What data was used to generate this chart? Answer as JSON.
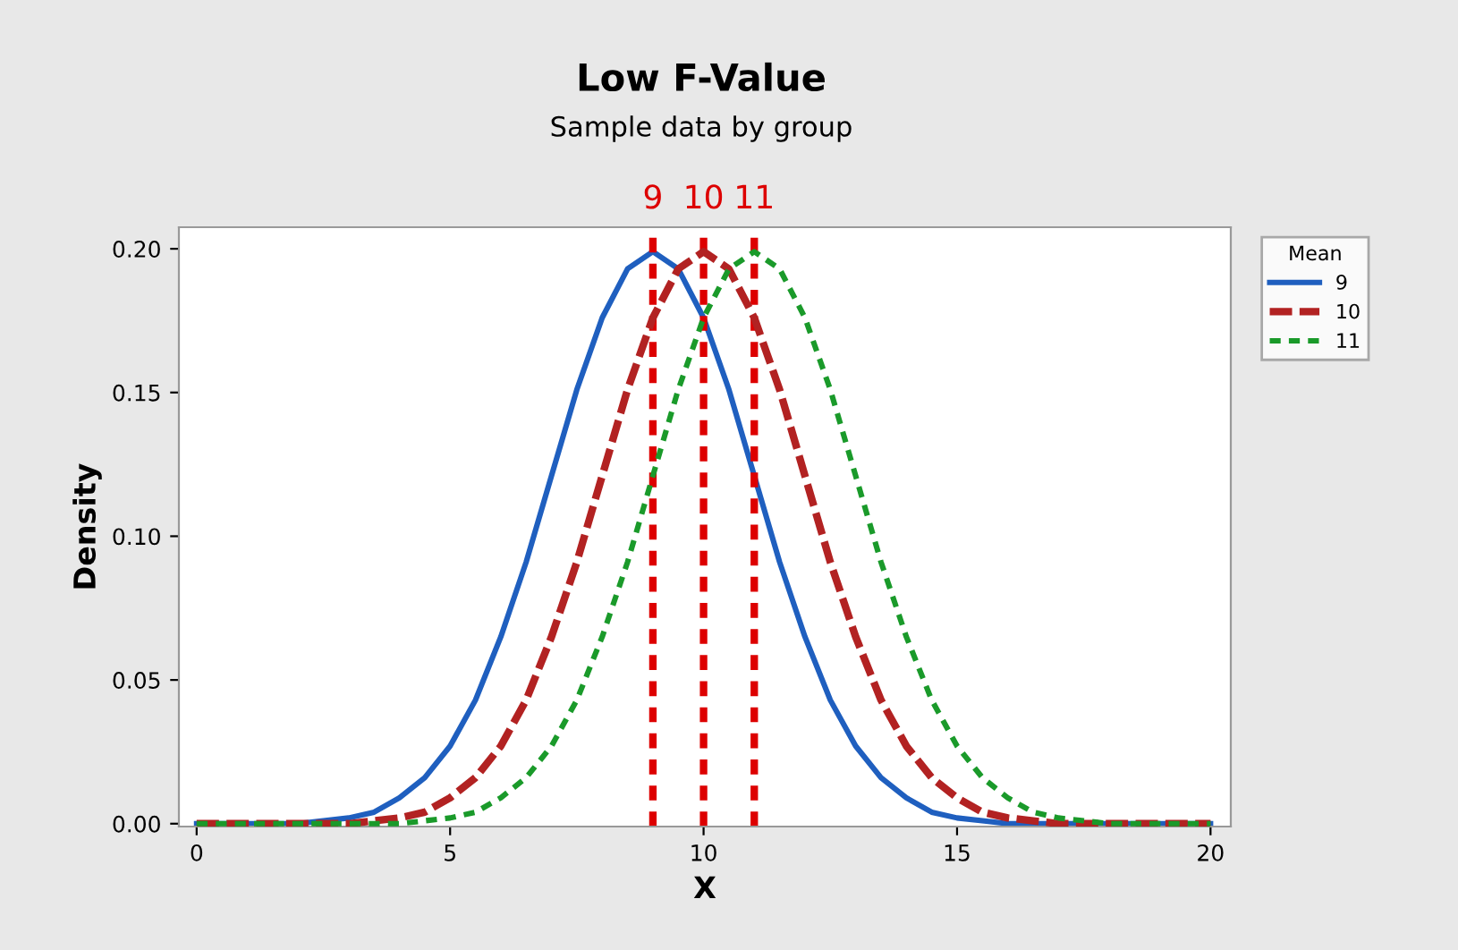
{
  "chart_data": {
    "type": "line",
    "title": "Low F-Value",
    "subtitle": "Sample data by group",
    "xlabel": "X",
    "ylabel": "Density",
    "legend_title": "Mean",
    "legend": "right",
    "x": [
      0,
      0.5,
      1,
      1.5,
      2,
      2.5,
      3,
      3.5,
      4,
      4.5,
      5,
      5.5,
      6,
      6.5,
      7,
      7.5,
      8,
      8.5,
      9,
      9.5,
      10,
      10.5,
      11,
      11.5,
      12,
      12.5,
      13,
      13.5,
      14,
      14.5,
      15,
      15.5,
      16,
      16.5,
      17,
      17.5,
      18,
      18.5,
      19,
      19.5,
      20
    ],
    "series": [
      {
        "name": "9",
        "color": "#1f5fbf",
        "line_style": "solid",
        "values": [
          0,
          0,
          0,
          0,
          0,
          0.001,
          0.002,
          0.004,
          0.009,
          0.016,
          0.027,
          0.043,
          0.065,
          0.091,
          0.121,
          0.151,
          0.176,
          0.193,
          0.199,
          0.193,
          0.176,
          0.151,
          0.121,
          0.091,
          0.065,
          0.043,
          0.027,
          0.016,
          0.009,
          0.004,
          0.002,
          0.001,
          0,
          0,
          0,
          0,
          0,
          0,
          0,
          0,
          0
        ]
      },
      {
        "name": "10",
        "color": "#b22222",
        "line_style": "dashed",
        "values": [
          0,
          0,
          0,
          0,
          0,
          0,
          0,
          0.001,
          0.002,
          0.004,
          0.009,
          0.016,
          0.027,
          0.043,
          0.065,
          0.091,
          0.121,
          0.151,
          0.176,
          0.193,
          0.199,
          0.193,
          0.176,
          0.151,
          0.121,
          0.091,
          0.065,
          0.043,
          0.027,
          0.016,
          0.009,
          0.004,
          0.002,
          0.001,
          0,
          0,
          0,
          0,
          0,
          0,
          0
        ]
      },
      {
        "name": "11",
        "color": "#1a9a2a",
        "line_style": "dotted",
        "values": [
          0,
          0,
          0,
          0,
          0,
          0,
          0,
          0,
          0,
          0.001,
          0.002,
          0.004,
          0.009,
          0.016,
          0.027,
          0.043,
          0.065,
          0.091,
          0.121,
          0.151,
          0.176,
          0.193,
          0.199,
          0.193,
          0.176,
          0.151,
          0.121,
          0.091,
          0.065,
          0.043,
          0.027,
          0.016,
          0.009,
          0.004,
          0.002,
          0.001,
          0,
          0,
          0,
          0,
          0
        ]
      }
    ],
    "ref_lines": [
      {
        "axis": "x",
        "value": 9,
        "label": "9",
        "color": "#dd0000",
        "line_style": "dotted"
      },
      {
        "axis": "x",
        "value": 10,
        "label": "10",
        "color": "#dd0000",
        "line_style": "dotted"
      },
      {
        "axis": "x",
        "value": 11,
        "label": "11",
        "color": "#dd0000",
        "line_style": "dotted"
      }
    ],
    "xlim": [
      -0.35,
      20.4
    ],
    "xticks": [
      0,
      5,
      10,
      15,
      20
    ],
    "ylim": [
      -0.001,
      0.2075
    ],
    "yticks": [
      {
        "value": 0,
        "label": "0.00"
      },
      {
        "value": 0.05,
        "label": "0.05"
      },
      {
        "value": 0.1,
        "label": "0.10"
      },
      {
        "value": 0.15,
        "label": "0.15"
      },
      {
        "value": 0.2,
        "label": "0.20"
      }
    ],
    "grid": false,
    "marker": "none"
  }
}
